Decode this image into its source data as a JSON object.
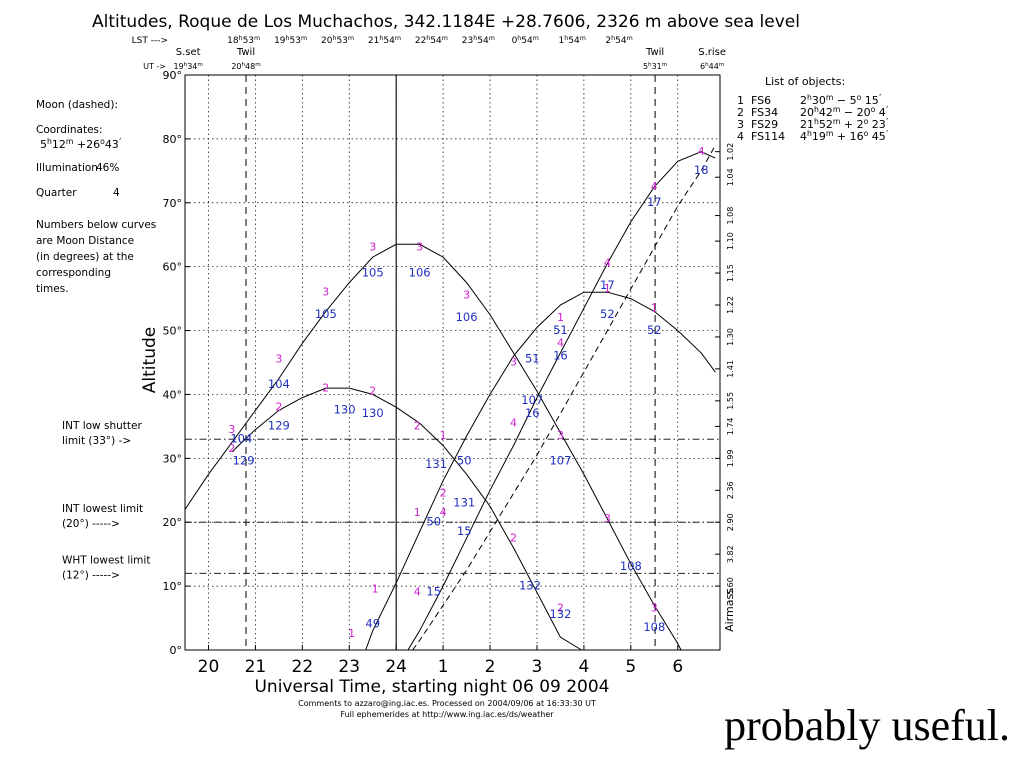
{
  "chart_data": {
    "type": "line",
    "title": "Altitudes, Roque de Los Muchachos, 342.1184E +28.7606, 2326 m above sea level",
    "xlabel": "Universal Time, starting night 06 09 2004",
    "ylabel": "Altitude",
    "right_axis_label": "Airmass",
    "xlim": [
      19.5,
      6.9
    ],
    "ylim": [
      0,
      90
    ],
    "grid": true,
    "x_ticks": [
      {
        "x": 20,
        "label": "20"
      },
      {
        "x": 21,
        "label": "21"
      },
      {
        "x": 22,
        "label": "22"
      },
      {
        "x": 23,
        "label": "23"
      },
      {
        "x": 24,
        "label": "24"
      },
      {
        "x": 25,
        "label": "1"
      },
      {
        "x": 26,
        "label": "2"
      },
      {
        "x": 27,
        "label": "3"
      },
      {
        "x": 28,
        "label": "4"
      },
      {
        "x": 29,
        "label": "5"
      },
      {
        "x": 30,
        "label": "6"
      }
    ],
    "y_ticks": [
      {
        "y": 0,
        "label": "0°"
      },
      {
        "y": 10,
        "label": "10°"
      },
      {
        "y": 20,
        "label": "20°"
      },
      {
        "y": 30,
        "label": "30°"
      },
      {
        "y": 40,
        "label": "40°"
      },
      {
        "y": 50,
        "label": "50°"
      },
      {
        "y": 60,
        "label": "60°"
      },
      {
        "y": 70,
        "label": "70°"
      },
      {
        "y": 80,
        "label": "80°"
      },
      {
        "y": 90,
        "label": "90°"
      }
    ],
    "airmass_ticks": [
      {
        "y": 78,
        "label": "1.02"
      },
      {
        "y": 74,
        "label": "1.04"
      },
      {
        "y": 68,
        "label": "1.08"
      },
      {
        "y": 64,
        "label": "1.10"
      },
      {
        "y": 59,
        "label": "1.15"
      },
      {
        "y": 54,
        "label": "1.22"
      },
      {
        "y": 49,
        "label": "1.30"
      },
      {
        "y": 44,
        "label": "1.41"
      },
      {
        "y": 39,
        "label": "1.55"
      },
      {
        "y": 35,
        "label": "1.74"
      },
      {
        "y": 30,
        "label": "1.99"
      },
      {
        "y": 25,
        "label": "2.36"
      },
      {
        "y": 20,
        "label": "2.90"
      },
      {
        "y": 15,
        "label": "3.82"
      },
      {
        "y": 10,
        "label": "5.60"
      }
    ],
    "lst_header": {
      "lst_label": "LST --->",
      "ut_label": "UT ->",
      "lst_ticks": [
        {
          "x": 20.75,
          "hours": "18",
          "minutes": "53"
        },
        {
          "x": 21.75,
          "hours": "19",
          "minutes": "53"
        },
        {
          "x": 22.75,
          "hours": "20",
          "minutes": "53"
        },
        {
          "x": 23.75,
          "hours": "21",
          "minutes": "54"
        },
        {
          "x": 24.75,
          "hours": "22",
          "minutes": "54"
        },
        {
          "x": 25.75,
          "hours": "23",
          "minutes": "54"
        },
        {
          "x": 26.75,
          "hours": "0",
          "minutes": "54"
        },
        {
          "x": 27.75,
          "hours": "1",
          "minutes": "54"
        },
        {
          "x": 28.75,
          "hours": "2",
          "minutes": "54"
        }
      ]
    },
    "events": [
      {
        "name": "S.set",
        "x": 19.567,
        "time": "19h34m",
        "hours": "19",
        "minutes": "34",
        "line": "none"
      },
      {
        "name": "Twil",
        "x": 20.8,
        "time": "20h48m",
        "hours": "20",
        "minutes": "48",
        "line": "dashed"
      },
      {
        "name": "Twil",
        "x": 29.517,
        "time": "5h31m",
        "hours": "5",
        "minutes": "31",
        "line": "dashed"
      },
      {
        "name": "S.rise",
        "x": 30.733,
        "time": "6h44m",
        "hours": "6",
        "minutes": "44",
        "line": "none"
      }
    ],
    "midnight_x": 24,
    "limits": [
      {
        "y": 33,
        "label_lines": [
          "INT low shutter",
          "limit (33°) ->"
        ]
      },
      {
        "y": 20,
        "label_lines": [
          "INT lowest limit",
          "(20°) ----->"
        ]
      },
      {
        "y": 12,
        "label_lines": [
          "WHT lowest limit",
          "(12°) ----->"
        ]
      }
    ],
    "moon_info": {
      "title": "Moon (dashed):",
      "coord_label": "Coordinates:",
      "ra_h": "5",
      "ra_m": "12",
      "dec_d": "+26",
      "dec_m": "43",
      "illumination_label": "Illumination",
      "illumination": "46%",
      "quarter_label": "Quarter",
      "quarter": "4"
    },
    "note_lines": [
      "Numbers below curves",
      "are Moon Distance",
      "(in degrees) at the",
      "corresponding",
      "times."
    ],
    "objects_title": "List of objects:",
    "objects": [
      {
        "id": "1",
        "name": "FS6",
        "ra_h": "2",
        "ra_m": "30",
        "dec_sign": "−",
        "dec_d": "5",
        "dec_m": "15"
      },
      {
        "id": "2",
        "name": "FS34",
        "ra_h": "20",
        "ra_m": "42",
        "dec_sign": "−",
        "dec_d": "20",
        "dec_m": "4"
      },
      {
        "id": "3",
        "name": "FS29",
        "ra_h": "21",
        "ra_m": "52",
        "dec_sign": "+",
        "dec_d": "2",
        "dec_m": "23"
      },
      {
        "id": "4",
        "name": "FS114",
        "ra_h": "4",
        "ra_m": "19",
        "dec_sign": "+",
        "dec_d": "16",
        "dec_m": "45"
      }
    ],
    "series": [
      {
        "id": "3",
        "style": "solid",
        "x": [
          19.5,
          20.0,
          20.5,
          21.0,
          21.5,
          22.0,
          22.5,
          23.0,
          23.5,
          24.0,
          24.5,
          25.0,
          25.5,
          26.0,
          26.5,
          27.0,
          27.5,
          28.0,
          28.5,
          29.0,
          29.5,
          30.0,
          30.07
        ],
        "y": [
          22,
          27.5,
          32.5,
          37.5,
          42.5,
          48,
          53,
          57.5,
          61.5,
          63.5,
          63.5,
          61.5,
          57.5,
          52.5,
          46.5,
          40.5,
          34,
          27.5,
          20.5,
          13.5,
          7,
          1,
          0
        ]
      },
      {
        "id": "2",
        "style": "solid",
        "x": [
          20.5,
          21.0,
          21.5,
          22.0,
          22.5,
          23.0,
          23.5,
          24.0,
          24.5,
          25.0,
          25.5,
          26.0,
          26.5,
          27.0,
          27.5,
          27.95
        ],
        "y": [
          31,
          34.5,
          37.5,
          39.5,
          41,
          41,
          40,
          38,
          35.5,
          32,
          27.5,
          22.5,
          16,
          9,
          2,
          0
        ]
      },
      {
        "id": "1",
        "style": "solid",
        "x": [
          23.35,
          23.5,
          24.0,
          24.5,
          25.0,
          25.5,
          26.0,
          26.5,
          27.0,
          27.5,
          28.0,
          28.5,
          29.0,
          29.5,
          30.0,
          30.5,
          30.8
        ],
        "y": [
          0,
          3,
          10.5,
          18.5,
          26.5,
          33.5,
          40,
          46,
          50.5,
          54,
          56,
          56,
          55,
          53,
          50,
          46.5,
          43.5
        ]
      },
      {
        "id": "4",
        "style": "solid",
        "x": [
          24.25,
          24.5,
          25.0,
          25.5,
          26.0,
          26.5,
          27.0,
          27.5,
          28.0,
          28.5,
          29.0,
          29.5,
          30.0,
          30.5,
          30.8
        ],
        "y": [
          0,
          3,
          10,
          17.5,
          25,
          32,
          39.5,
          46.5,
          53.5,
          60.5,
          67,
          72.5,
          76.5,
          78,
          77
        ]
      },
      {
        "id": "moon",
        "style": "dashed",
        "x": [
          24.35,
          24.5,
          25.0,
          25.5,
          26.0,
          26.5,
          27.0,
          27.5,
          28.0,
          28.5,
          29.0,
          29.5,
          30.0,
          30.5,
          30.8
        ],
        "y": [
          0,
          1.5,
          7,
          12.5,
          18.5,
          24.5,
          30.5,
          37,
          43.5,
          50,
          56.5,
          63,
          69.5,
          75,
          79
        ]
      }
    ],
    "point_labels": [
      {
        "x": 23.05,
        "y": 2,
        "text": "1"
      },
      {
        "x": 23.55,
        "y": 9,
        "text": "1"
      },
      {
        "x": 24.45,
        "y": 8.5,
        "text": "4"
      },
      {
        "x": 24.45,
        "y": 21,
        "text": "1"
      },
      {
        "x": 25.0,
        "y": 21,
        "text": "4"
      },
      {
        "x": 25.0,
        "y": 33,
        "text": "1"
      },
      {
        "x": 25.0,
        "y": 24,
        "text": "2"
      },
      {
        "x": 24.45,
        "y": 34.5,
        "text": "2"
      },
      {
        "x": 26.5,
        "y": 17,
        "text": "2"
      },
      {
        "x": 26.5,
        "y": 44.5,
        "text": "3"
      },
      {
        "x": 26.5,
        "y": 35,
        "text": "4"
      },
      {
        "x": 27.5,
        "y": 51.5,
        "text": "1"
      },
      {
        "x": 27.5,
        "y": 47.5,
        "text": "4"
      },
      {
        "x": 27.5,
        "y": 33,
        "text": "3"
      },
      {
        "x": 27.5,
        "y": 6,
        "text": "2"
      },
      {
        "x": 28.5,
        "y": 60,
        "text": "4"
      },
      {
        "x": 28.5,
        "y": 56,
        "text": "1"
      },
      {
        "x": 28.5,
        "y": 20,
        "text": "3"
      },
      {
        "x": 29.5,
        "y": 72,
        "text": "4"
      },
      {
        "x": 29.5,
        "y": 53,
        "text": "1"
      },
      {
        "x": 29.5,
        "y": 6,
        "text": "3"
      },
      {
        "x": 30.5,
        "y": 77.5,
        "text": "4"
      },
      {
        "x": 20.5,
        "y": 34,
        "text": "3"
      },
      {
        "x": 20.5,
        "y": 31,
        "text": "2"
      },
      {
        "x": 21.5,
        "y": 45,
        "text": "3"
      },
      {
        "x": 21.5,
        "y": 37.5,
        "text": "2"
      },
      {
        "x": 22.5,
        "y": 55.5,
        "text": "3"
      },
      {
        "x": 22.5,
        "y": 40.5,
        "text": "2"
      },
      {
        "x": 23.5,
        "y": 62.5,
        "text": "3"
      },
      {
        "x": 23.5,
        "y": 40,
        "text": "2"
      },
      {
        "x": 24.5,
        "y": 62.5,
        "text": "3"
      },
      {
        "x": 25.5,
        "y": 55,
        "text": "3"
      }
    ],
    "moon_distance_labels": [
      {
        "x": 23.5,
        "y": 3.5,
        "text": "49"
      },
      {
        "x": 24.8,
        "y": 8.5,
        "text": "15"
      },
      {
        "x": 24.8,
        "y": 19.5,
        "text": "50"
      },
      {
        "x": 25.45,
        "y": 18,
        "text": "15"
      },
      {
        "x": 25.45,
        "y": 29,
        "text": "50"
      },
      {
        "x": 25.45,
        "y": 22.5,
        "text": "131"
      },
      {
        "x": 24.85,
        "y": 28.5,
        "text": "131"
      },
      {
        "x": 26.85,
        "y": 9.5,
        "text": "132"
      },
      {
        "x": 26.9,
        "y": 36.5,
        "text": "16"
      },
      {
        "x": 26.9,
        "y": 45,
        "text": "51"
      },
      {
        "x": 26.9,
        "y": 38.5,
        "text": "107"
      },
      {
        "x": 27.5,
        "y": 5,
        "text": "132"
      },
      {
        "x": 27.5,
        "y": 29,
        "text": "107"
      },
      {
        "x": 27.5,
        "y": 45.5,
        "text": "16"
      },
      {
        "x": 27.5,
        "y": 49.5,
        "text": "51"
      },
      {
        "x": 28.5,
        "y": 56.5,
        "text": "17"
      },
      {
        "x": 28.5,
        "y": 52,
        "text": "52"
      },
      {
        "x": 29.0,
        "y": 12.5,
        "text": "108"
      },
      {
        "x": 29.5,
        "y": 69.5,
        "text": "17"
      },
      {
        "x": 29.5,
        "y": 49.5,
        "text": "52"
      },
      {
        "x": 29.5,
        "y": 3,
        "text": "108"
      },
      {
        "x": 30.5,
        "y": 74.5,
        "text": "18"
      },
      {
        "x": 20.7,
        "y": 32.5,
        "text": "104"
      },
      {
        "x": 20.75,
        "y": 29,
        "text": "129"
      },
      {
        "x": 21.5,
        "y": 41,
        "text": "104"
      },
      {
        "x": 21.5,
        "y": 34.5,
        "text": "129"
      },
      {
        "x": 22.5,
        "y": 52,
        "text": "105"
      },
      {
        "x": 22.9,
        "y": 37,
        "text": "130"
      },
      {
        "x": 23.5,
        "y": 36.5,
        "text": "130"
      },
      {
        "x": 23.5,
        "y": 58.5,
        "text": "105"
      },
      {
        "x": 24.5,
        "y": 58.5,
        "text": "106"
      },
      {
        "x": 25.5,
        "y": 51.5,
        "text": "106"
      }
    ],
    "footer_lines": [
      "Comments to azzaro@ing.iac.es. Processed on 2004/09/06 at 16:33:30 UT",
      "Full ephemerides at http://www.ing.iac.es/ds/weather"
    ]
  },
  "caption": "probably useful.",
  "colors": {
    "axis": "#000000",
    "curve": "#000000",
    "grid": "#000000",
    "point_label": "#d020d0",
    "distance_label": "#2030c0"
  }
}
